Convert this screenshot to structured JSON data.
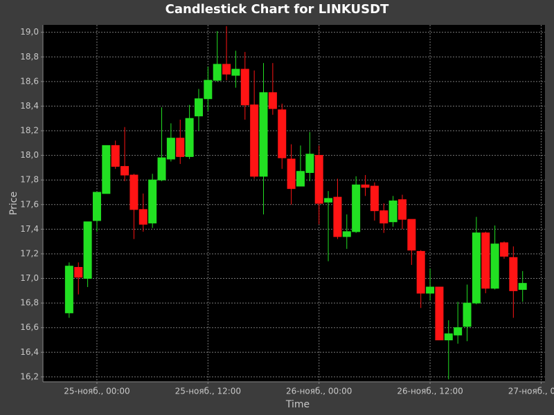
{
  "chart_data": {
    "type": "candlestick",
    "title": "Candlestick Chart for LINKUSDT",
    "x_label": "Time",
    "y_label": "Price",
    "up_color": "#22e022",
    "down_color": "#ff1414",
    "grid": true,
    "x": [
      "24-нояб., 21:00",
      "24-нояб., 22:00",
      "24-нояб., 23:00",
      "25-нояб., 00:00",
      "25-нояб., 01:00",
      "25-нояб., 02:00",
      "25-нояб., 03:00",
      "25-нояб., 04:00",
      "25-нояб., 05:00",
      "25-нояб., 06:00",
      "25-нояб., 07:00",
      "25-нояб., 08:00",
      "25-нояб., 09:00",
      "25-нояб., 10:00",
      "25-нояб., 11:00",
      "25-нояб., 12:00",
      "25-нояб., 13:00",
      "25-нояб., 14:00",
      "25-нояб., 15:00",
      "25-нояб., 16:00",
      "25-нояб., 17:00",
      "25-нояб., 18:00",
      "25-нояб., 19:00",
      "25-нояб., 20:00",
      "25-нояб., 21:00",
      "25-нояб., 22:00",
      "25-нояб., 23:00",
      "26-нояб., 00:00",
      "26-нояб., 01:00",
      "26-нояб., 02:00",
      "26-нояб., 03:00",
      "26-нояб., 04:00",
      "26-нояб., 05:00",
      "26-нояб., 06:00",
      "26-нояб., 07:00",
      "26-нояб., 08:00",
      "26-нояб., 09:00",
      "26-нояб., 10:00",
      "26-нояб., 11:00",
      "26-нояб., 12:00",
      "26-нояб., 13:00",
      "26-нояб., 14:00",
      "26-нояб., 15:00",
      "26-нояб., 16:00",
      "26-нояб., 17:00",
      "26-нояб., 18:00",
      "26-нояб., 19:00",
      "26-нояб., 20:00",
      "26-нояб., 21:00",
      "26-нояб., 22:00"
    ],
    "open": [
      16.72,
      17.09,
      17.0,
      17.47,
      17.69,
      18.08,
      17.91,
      17.84,
      17.56,
      17.45,
      17.8,
      17.97,
      18.14,
      17.99,
      18.32,
      18.46,
      18.61,
      18.74,
      18.65,
      18.7,
      18.41,
      17.83,
      18.51,
      18.37,
      17.97,
      17.75,
      17.86,
      18.0,
      17.62,
      17.66,
      17.34,
      17.38,
      17.76,
      17.75,
      17.55,
      17.46,
      17.64,
      17.48,
      17.22,
      16.88,
      16.93,
      16.5,
      16.54,
      16.61,
      16.8,
      17.37,
      16.92,
      17.29,
      17.17,
      16.91
    ],
    "high": [
      17.13,
      17.13,
      17.46,
      17.7,
      18.08,
      18.12,
      18.23,
      17.85,
      17.69,
      17.85,
      18.39,
      18.26,
      18.29,
      18.41,
      18.54,
      18.72,
      19.01,
      19.05,
      18.85,
      18.84,
      18.69,
      18.75,
      18.75,
      18.42,
      18.09,
      18.08,
      18.19,
      18.08,
      17.71,
      17.81,
      17.52,
      17.83,
      17.84,
      17.78,
      17.61,
      17.67,
      17.68,
      17.48,
      17.23,
      17.08,
      16.93,
      16.66,
      16.81,
      16.95,
      17.5,
      17.38,
      17.43,
      17.3,
      17.26,
      17.06
    ],
    "low": [
      16.68,
      16.87,
      16.93,
      17.38,
      17.69,
      17.89,
      17.79,
      17.32,
      17.38,
      17.41,
      17.79,
      17.95,
      17.93,
      17.97,
      18.2,
      18.36,
      18.6,
      18.61,
      18.55,
      18.29,
      17.81,
      17.52,
      18.33,
      17.89,
      17.6,
      17.75,
      17.79,
      17.44,
      17.14,
      17.32,
      17.24,
      17.37,
      17.67,
      17.47,
      17.37,
      17.42,
      17.4,
      17.11,
      16.76,
      16.82,
      16.5,
      16.18,
      16.47,
      16.49,
      16.79,
      16.88,
      16.91,
      17.16,
      16.68,
      16.81
    ],
    "close": [
      17.1,
      17.01,
      17.46,
      17.7,
      18.08,
      17.91,
      17.84,
      17.56,
      17.44,
      17.8,
      17.98,
      18.14,
      17.99,
      18.3,
      18.46,
      18.61,
      18.74,
      18.66,
      18.7,
      18.41,
      17.83,
      18.51,
      18.38,
      17.98,
      17.73,
      17.87,
      18.01,
      17.61,
      17.65,
      17.34,
      17.38,
      17.76,
      17.74,
      17.55,
      17.45,
      17.63,
      17.48,
      17.23,
      16.88,
      16.93,
      16.5,
      16.55,
      16.6,
      16.8,
      17.37,
      16.92,
      17.28,
      17.18,
      16.9,
      16.96
    ],
    "xlim": [
      "24-нояб., 18:10",
      "27-нояб., 00:25"
    ],
    "xticks": [
      "25-нояб., 00:00",
      "25-нояб., 12:00",
      "26-нояб., 00:00",
      "26-нояб., 12:00",
      "27-нояб., 00:00"
    ],
    "ylim": [
      16.16,
      19.06
    ],
    "yticks": [
      {
        "value": 16.2,
        "label": "16,2"
      },
      {
        "value": 16.4,
        "label": "16,4"
      },
      {
        "value": 16.6,
        "label": "16,6"
      },
      {
        "value": 16.8,
        "label": "16,8"
      },
      {
        "value": 17.0,
        "label": "17,0"
      },
      {
        "value": 17.2,
        "label": "17,2"
      },
      {
        "value": 17.4,
        "label": "17,4"
      },
      {
        "value": 17.6,
        "label": "17,6"
      },
      {
        "value": 17.8,
        "label": "17,8"
      },
      {
        "value": 18.0,
        "label": "18,0"
      },
      {
        "value": 18.2,
        "label": "18,2"
      },
      {
        "value": 18.4,
        "label": "18,4"
      },
      {
        "value": 18.6,
        "label": "18,6"
      },
      {
        "value": 18.8,
        "label": "18,8"
      },
      {
        "value": 19.0,
        "label": "19,0"
      }
    ]
  }
}
